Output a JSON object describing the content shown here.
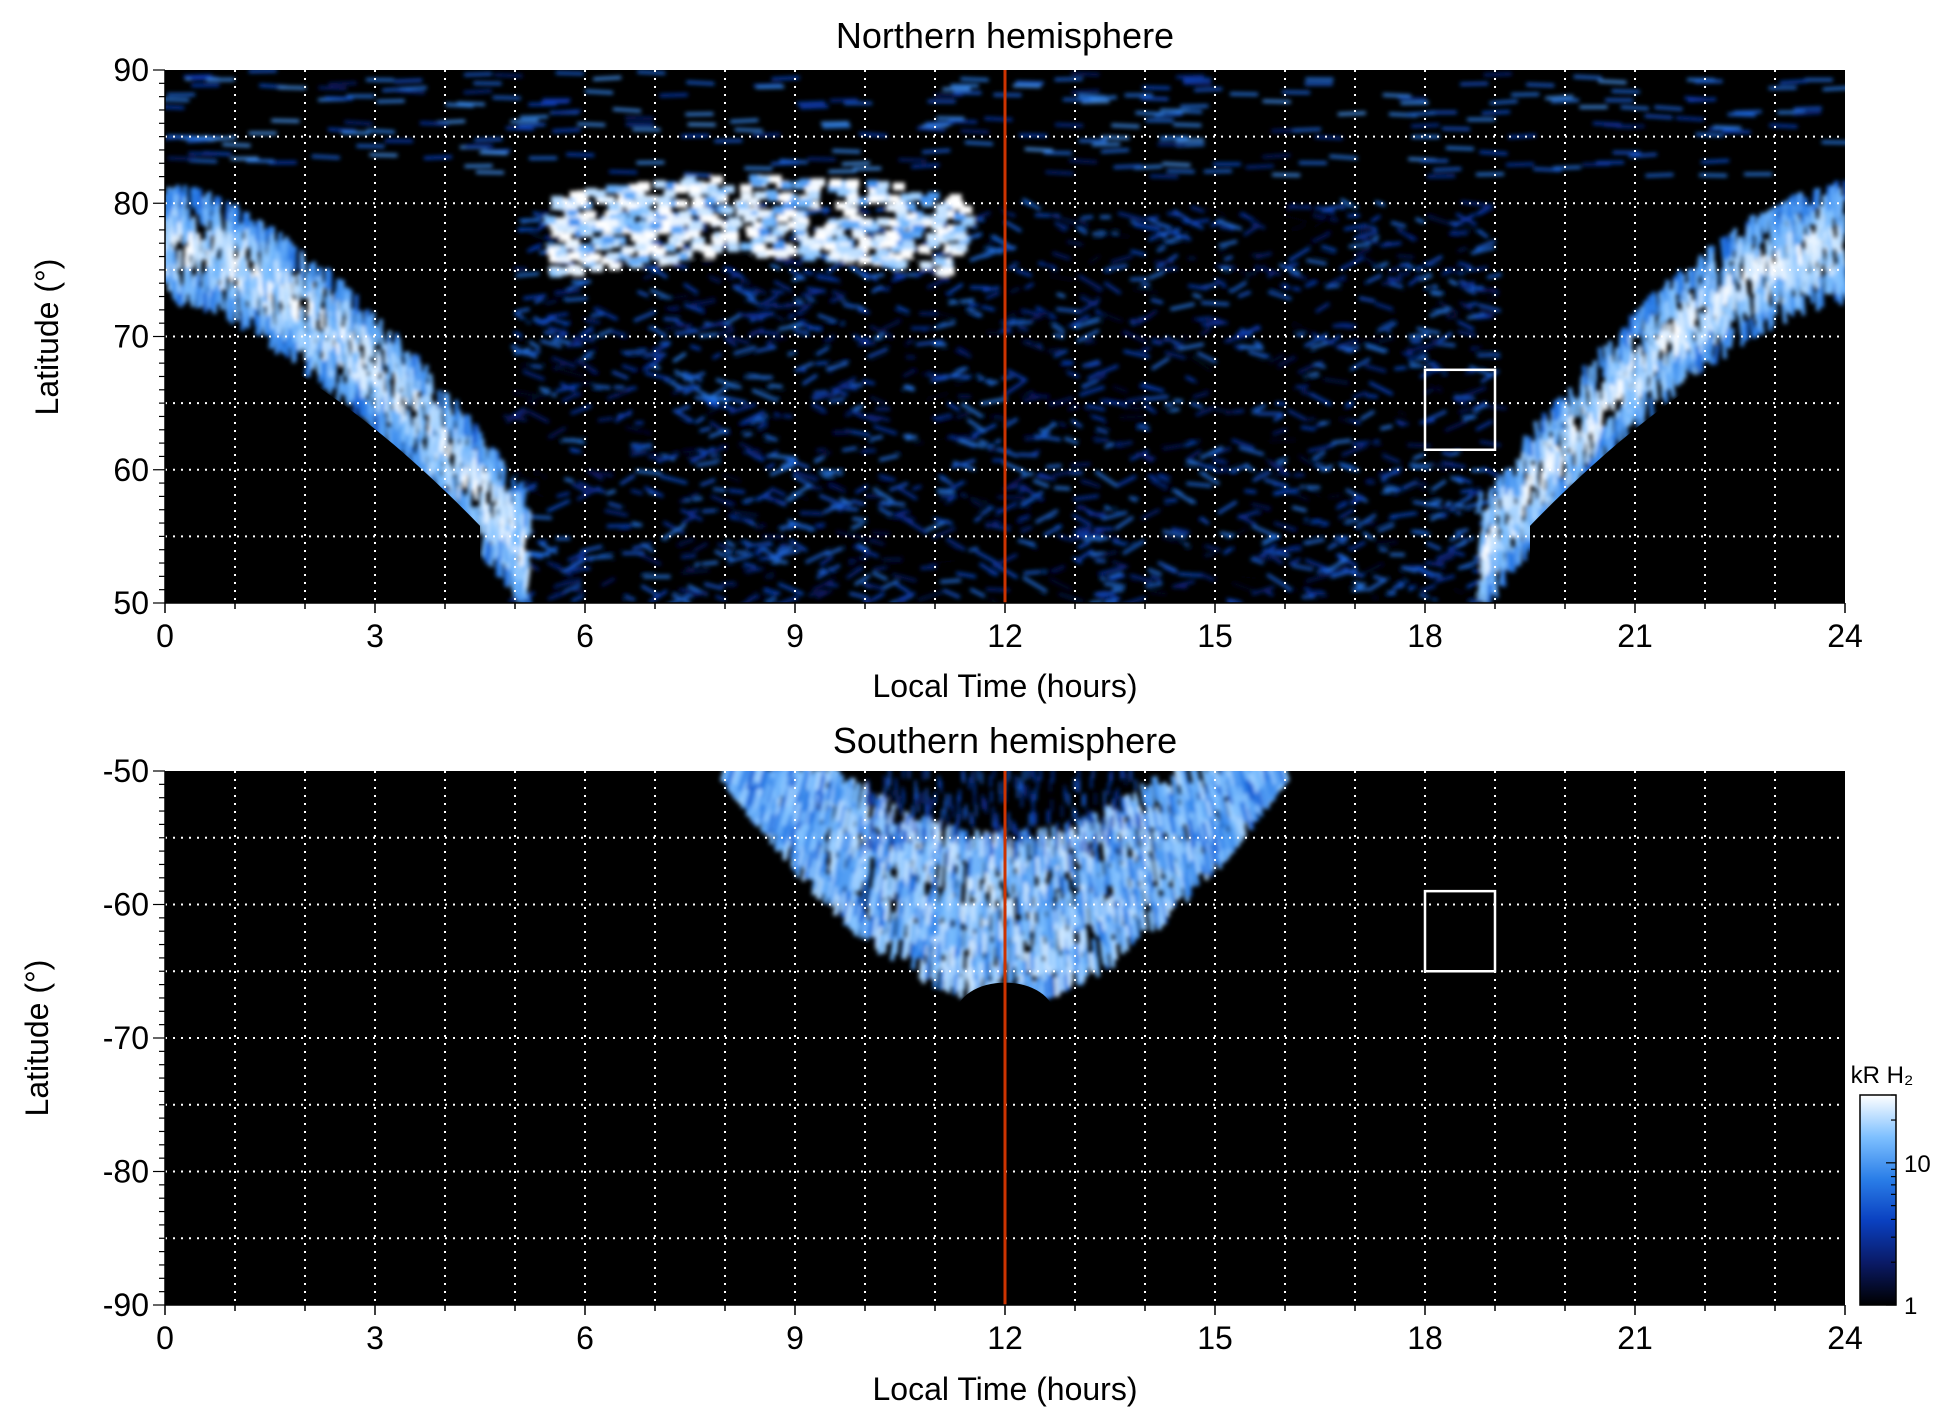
{
  "chart_data": [
    {
      "type": "heatmap",
      "title": "Northern hemisphere",
      "xlabel": "Local Time (hours)",
      "ylabel": "Latitude (°)",
      "xlim": [
        0,
        24
      ],
      "ylim": [
        50,
        90
      ],
      "xticks": [
        "0",
        "3",
        "6",
        "9",
        "12",
        "15",
        "18",
        "21",
        "24"
      ],
      "yticks": [
        "50",
        "60",
        "70",
        "80",
        "90"
      ],
      "grid": true,
      "grid_x_step": 1,
      "grid_y_step": 5,
      "noon_line_lt": 12,
      "box": {
        "lt": [
          18,
          19
        ],
        "lat": [
          61.5,
          67.5
        ]
      },
      "features": {
        "main_oval": {
          "lat_at_midnight": 77,
          "lat_at_5h": 55,
          "lat_at_19h": 55,
          "lat_at_23h": 77,
          "reaches_lat_50_between_lt": [
            4.2,
            19.8
          ],
          "intensity_kR": 20
        },
        "polar_cap_bright_patch": {
          "lt": [
            5.5,
            11.5
          ],
          "lat": [
            74,
            81
          ],
          "intensity_kR": 30
        },
        "diffuse_emission": {
          "lt": [
            5,
            19
          ],
          "lat": [
            50,
            80
          ],
          "intensity_kR": 3
        },
        "no_data_region": {
          "lt_nightside": [
            [
              0,
              4.5
            ],
            [
              19.5,
              24
            ]
          ],
          "lat_below": 71
        }
      }
    },
    {
      "type": "heatmap",
      "title": "Southern hemisphere",
      "xlabel": "Local Time (hours)",
      "ylabel": "Latitude (°)",
      "xlim": [
        0,
        24
      ],
      "ylim": [
        -90,
        -50
      ],
      "xticks": [
        "0",
        "3",
        "6",
        "9",
        "12",
        "15",
        "18",
        "21",
        "24"
      ],
      "yticks": [
        "-90",
        "-80",
        "-70",
        "-60",
        "-50"
      ],
      "grid": true,
      "grid_x_step": 1,
      "grid_y_step": 5,
      "noon_line_lt": 12,
      "box": {
        "lt": [
          18,
          19
        ],
        "lat": [
          -65,
          -59
        ]
      },
      "features": {
        "main_oval": {
          "lt": [
            8,
            16
          ],
          "lat_outer": -67,
          "lat_inner_top": -50,
          "intensity_kR": 20
        },
        "no_data_cap": {
          "lt": [
            11.3,
            12.7
          ],
          "lat_below": -66
        }
      }
    }
  ],
  "colorbar": {
    "label": "kR H₂",
    "ticks": [
      "1",
      "10"
    ],
    "scale": "log",
    "range": [
      1,
      30
    ],
    "colors": [
      "#000000",
      "#0a1a66",
      "#0a40c0",
      "#2a7ee8",
      "#7ec0ff",
      "#ffffff"
    ]
  },
  "colors": {
    "background": "#000000",
    "grid": "#ffffff",
    "noon_line": "#cc3300",
    "box": "#ffffff"
  }
}
